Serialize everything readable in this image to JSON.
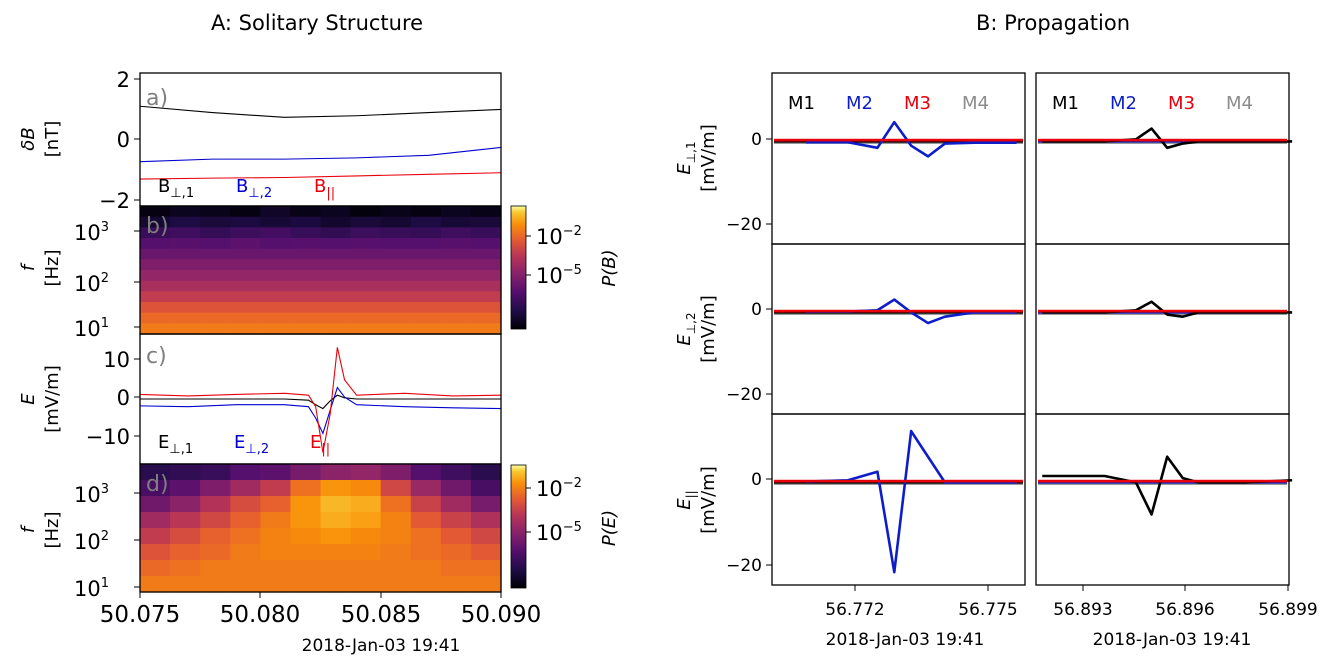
{
  "titles": {
    "left": "A: Solitary Structure",
    "right": "B: Propagation"
  },
  "colors": {
    "e_perp1": "#000000",
    "e_perp2": "#0000cd",
    "e_par": "#e8000b",
    "M1": "#000000",
    "M2": "#0d1ec8",
    "M3": "#e8000b",
    "M4": "#8c8c8c"
  },
  "panelA": {
    "xlim": [
      50.075,
      50.09
    ],
    "xticks": [
      "50.075",
      "50.080",
      "50.085",
      "50.090"
    ],
    "date_label": "2018-Jan-03 19:41",
    "a": {
      "tag": "a)",
      "ylabel": "δB",
      "yunit": "[nT]",
      "ylim": [
        -2.2,
        2.0
      ],
      "yticks": [
        "2",
        "0",
        "−2"
      ],
      "legend": [
        "B",
        "B",
        "B"
      ],
      "legend_sub": [
        "⊥,1",
        "⊥,2",
        "||"
      ]
    },
    "b": {
      "tag": "b)",
      "ylabel": "f",
      "yunit": "[Hz]",
      "yticks": [
        "10",
        "10",
        "10"
      ],
      "ytick_exp": [
        "3",
        "2",
        "1"
      ],
      "cbar_label": "P(B)",
      "cbar_ticks": [
        "10",
        "10"
      ],
      "cbar_exp": [
        "−2",
        "−5"
      ]
    },
    "c": {
      "tag": "c)",
      "ylabel": "E",
      "yunit": "[mV/m]",
      "ylim": [
        -17,
        17
      ],
      "yticks": [
        "10",
        "0",
        "−10"
      ],
      "legend": [
        "E",
        "E",
        "E"
      ],
      "legend_sub": [
        "⊥,1",
        "⊥,2",
        "||"
      ]
    },
    "d": {
      "tag": "d)",
      "ylabel": "f",
      "yunit": "[Hz]",
      "yticks": [
        "10",
        "10",
        "10"
      ],
      "ytick_exp": [
        "3",
        "2",
        "1"
      ],
      "cbar_label": "P(E)",
      "cbar_ticks": [
        "10",
        "10"
      ],
      "cbar_exp": [
        "−2",
        "−5"
      ]
    }
  },
  "panelB": {
    "legend": [
      "M1",
      "M2",
      "M3",
      "M4"
    ],
    "ylim": [
      -25,
      15
    ],
    "yticks": [
      "0",
      "−20"
    ],
    "rows": [
      {
        "ylabel": "E",
        "ylabel_sub": "⊥,1",
        "yunit": "[mV/m]"
      },
      {
        "ylabel": "E",
        "ylabel_sub": "⊥,2",
        "yunit": "[mV/m]"
      },
      {
        "ylabel": "E",
        "ylabel_sub": "||",
        "yunit": "[mV/m]"
      }
    ],
    "left_xticks": [
      "56.772",
      "56.775"
    ],
    "right_xticks": [
      "56.893",
      "56.896",
      "56.899"
    ],
    "date_label": "2018-Jan-03 19:41"
  },
  "chart_data": [
    {
      "type": "line",
      "title": "a)",
      "ylabel": "δB [nT]",
      "xlim": [
        50.075,
        50.09
      ],
      "ylim": [
        -2.2,
        2.0
      ],
      "x": [
        50.075,
        50.078,
        50.081,
        50.084,
        50.087,
        50.09
      ],
      "series": [
        {
          "name": "B⊥,1",
          "values": [
            0.95,
            0.75,
            0.6,
            0.65,
            0.75,
            0.85
          ]
        },
        {
          "name": "B⊥,2",
          "values": [
            -0.8,
            -0.72,
            -0.72,
            -0.68,
            -0.6,
            -0.35
          ]
        },
        {
          "name": "B||",
          "values": [
            -1.35,
            -1.32,
            -1.3,
            -1.25,
            -1.2,
            -1.15
          ]
        }
      ]
    },
    {
      "type": "heatmap",
      "title": "b)",
      "ylabel": "f [Hz]",
      "colorbar": "P(B)",
      "levels": [
        [
          0.03,
          0.06,
          0.05,
          0.03,
          0.08,
          0.04,
          0.06,
          0.02,
          0.05,
          0.03,
          0.06,
          0.04
        ],
        [
          0.1,
          0.14,
          0.12,
          0.13,
          0.11,
          0.13,
          0.09,
          0.12,
          0.1,
          0.14,
          0.11,
          0.12
        ],
        [
          0.22,
          0.24,
          0.21,
          0.23,
          0.25,
          0.22,
          0.2,
          0.23,
          0.22,
          0.21,
          0.24,
          0.22
        ],
        [
          0.3,
          0.31,
          0.3,
          0.32,
          0.3,
          0.31,
          0.3,
          0.31,
          0.3,
          0.3,
          0.31,
          0.3
        ],
        [
          0.36,
          0.36,
          0.36,
          0.36,
          0.36,
          0.36,
          0.36,
          0.36,
          0.36,
          0.36,
          0.36,
          0.36
        ],
        [
          0.42,
          0.42,
          0.42,
          0.42,
          0.42,
          0.42,
          0.42,
          0.42,
          0.42,
          0.42,
          0.42,
          0.42
        ],
        [
          0.48,
          0.48,
          0.48,
          0.48,
          0.48,
          0.48,
          0.48,
          0.48,
          0.48,
          0.48,
          0.48,
          0.48
        ],
        [
          0.55,
          0.55,
          0.55,
          0.55,
          0.55,
          0.55,
          0.55,
          0.55,
          0.55,
          0.55,
          0.55,
          0.55
        ],
        [
          0.62,
          0.62,
          0.62,
          0.62,
          0.62,
          0.62,
          0.62,
          0.62,
          0.62,
          0.62,
          0.62,
          0.62
        ],
        [
          0.7,
          0.7,
          0.7,
          0.7,
          0.7,
          0.7,
          0.7,
          0.7,
          0.7,
          0.7,
          0.7,
          0.7
        ],
        [
          0.76,
          0.76,
          0.76,
          0.76,
          0.76,
          0.76,
          0.76,
          0.76,
          0.76,
          0.76,
          0.76,
          0.76
        ],
        [
          0.8,
          0.8,
          0.8,
          0.8,
          0.8,
          0.8,
          0.8,
          0.8,
          0.8,
          0.8,
          0.8,
          0.8
        ]
      ]
    },
    {
      "type": "line",
      "title": "c)",
      "ylabel": "E [mV/m]",
      "xlim": [
        50.075,
        50.09
      ],
      "ylim": [
        -17,
        17
      ],
      "x": [
        50.075,
        50.077,
        50.079,
        50.081,
        50.082,
        50.0823,
        50.0826,
        50.0829,
        50.0832,
        50.0835,
        50.084,
        50.086,
        50.088,
        50.09
      ],
      "series": [
        {
          "name": "E⊥,1",
          "values": [
            0,
            0,
            0,
            0,
            -0.3,
            -1.5,
            -2.5,
            -0.5,
            1,
            0.3,
            0,
            0,
            0,
            0
          ]
        },
        {
          "name": "E⊥,2",
          "values": [
            -1.8,
            -2,
            -1.5,
            -1.5,
            -2,
            -5,
            -9,
            -3,
            3,
            0.5,
            -1.5,
            -2,
            -2.3,
            -2.5
          ]
        },
        {
          "name": "E||",
          "values": [
            1.2,
            0.8,
            1.2,
            1.5,
            1,
            -2,
            -14,
            -4,
            13.5,
            5,
            1,
            1.5,
            0.8,
            1
          ]
        }
      ]
    },
    {
      "type": "heatmap",
      "title": "d)",
      "ylabel": "f [Hz]",
      "colorbar": "P(E)",
      "levels": [
        [
          0.18,
          0.2,
          0.22,
          0.3,
          0.32,
          0.4,
          0.46,
          0.48,
          0.42,
          0.3,
          0.24,
          0.18
        ],
        [
          0.26,
          0.32,
          0.42,
          0.52,
          0.62,
          0.78,
          0.86,
          0.84,
          0.66,
          0.5,
          0.38,
          0.26
        ],
        [
          0.38,
          0.46,
          0.58,
          0.68,
          0.74,
          0.86,
          0.92,
          0.9,
          0.78,
          0.64,
          0.52,
          0.4
        ],
        [
          0.52,
          0.6,
          0.66,
          0.74,
          0.8,
          0.86,
          0.9,
          0.88,
          0.82,
          0.72,
          0.64,
          0.56
        ],
        [
          0.62,
          0.68,
          0.74,
          0.78,
          0.82,
          0.84,
          0.86,
          0.84,
          0.82,
          0.78,
          0.72,
          0.66
        ],
        [
          0.7,
          0.74,
          0.76,
          0.8,
          0.82,
          0.82,
          0.82,
          0.82,
          0.8,
          0.78,
          0.76,
          0.72
        ],
        [
          0.76,
          0.78,
          0.8,
          0.8,
          0.8,
          0.8,
          0.8,
          0.8,
          0.8,
          0.8,
          0.78,
          0.78
        ],
        [
          0.8,
          0.8,
          0.8,
          0.8,
          0.8,
          0.8,
          0.8,
          0.8,
          0.8,
          0.8,
          0.8,
          0.8
        ]
      ]
    },
    {
      "type": "line",
      "title": "B: Propagation",
      "ylim": [
        -25,
        15
      ],
      "x_left": [
        56.7705,
        56.7715,
        56.7722,
        56.7726,
        56.773,
        56.7734,
        56.7738,
        56.7745,
        56.7755
      ],
      "x_right": [
        56.8915,
        56.8935,
        56.8945,
        56.895,
        56.8955,
        56.896,
        56.8965,
        56.898,
        56.8995
      ],
      "series": [
        {
          "name": "M2",
          "row": "E⊥,1",
          "side": "left",
          "values": [
            -1.2,
            -1.2,
            -2.5,
            3.5,
            -2,
            -4.5,
            -1.5,
            -1.3,
            -1.3
          ]
        },
        {
          "name": "M1",
          "row": "E⊥,1",
          "side": "right",
          "values": [
            -1,
            -1,
            -0.5,
            2,
            -2.5,
            -1.5,
            -1,
            -1,
            -1
          ]
        },
        {
          "name": "M2",
          "row": "E⊥,2",
          "side": "left",
          "values": [
            -0.8,
            -0.8,
            -0.5,
            2,
            -1,
            -3.5,
            -2,
            -1,
            -1
          ]
        },
        {
          "name": "M1",
          "row": "E⊥,2",
          "side": "right",
          "values": [
            -1,
            -1,
            -0.5,
            1.5,
            -1.5,
            -2,
            -1,
            -1,
            -1
          ]
        },
        {
          "name": "M2",
          "row": "E||",
          "side": "left",
          "values": [
            -0.8,
            -0.5,
            1.5,
            -22,
            11,
            5,
            -1,
            -1,
            -1
          ]
        },
        {
          "name": "M1",
          "row": "E||",
          "side": "right",
          "values": [
            0.5,
            0.5,
            -1,
            -8.5,
            5,
            0,
            -1,
            -1,
            -0.5
          ]
        }
      ]
    }
  ]
}
